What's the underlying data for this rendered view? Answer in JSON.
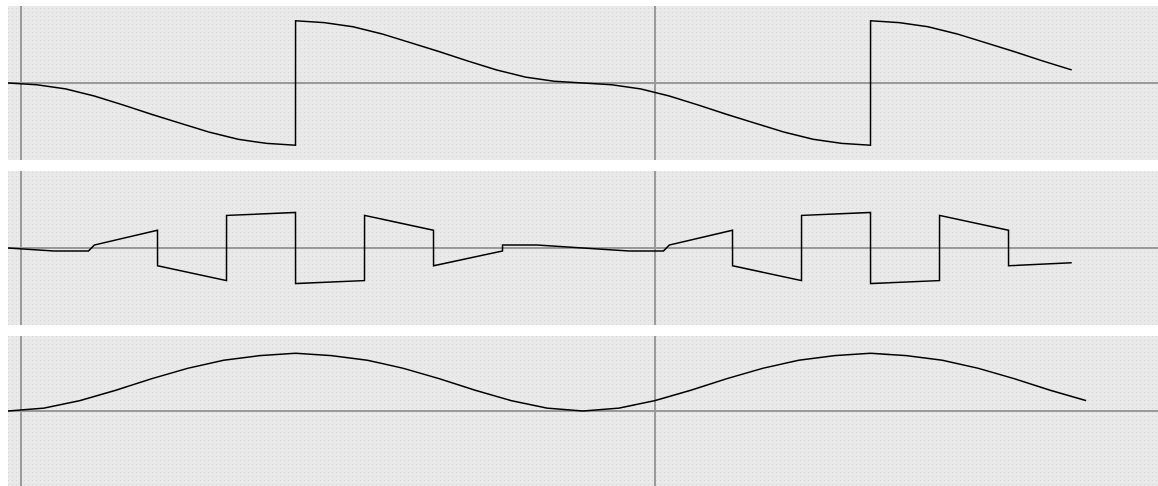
{
  "theme": {
    "page_bg": "#ffffff",
    "panel_bg": "#e9e9e9",
    "grid_dot": "#d7d7d7",
    "axis": "#9a9a9a",
    "trace": "#000000"
  },
  "chart_data": [
    {
      "type": "line",
      "grid": true,
      "xlim": [
        0,
        2
      ],
      "ylim": [
        -1.3,
        1.3
      ],
      "x": [
        0.0,
        0.05,
        0.1,
        0.15,
        0.2,
        0.25,
        0.3,
        0.35,
        0.4,
        0.45,
        0.5,
        0.5001,
        0.55,
        0.6,
        0.65,
        0.7,
        0.75,
        0.8,
        0.85,
        0.9,
        0.95,
        1.0,
        1.05,
        1.1,
        1.15,
        1.2,
        1.25,
        1.3,
        1.35,
        1.4,
        1.45,
        1.5,
        1.5001,
        1.55,
        1.6,
        1.65,
        1.7,
        1.75,
        1.8,
        1.85
      ],
      "series": [
        {
          "values": [
            0.0,
            -0.03,
            -0.1,
            -0.22,
            -0.37,
            -0.53,
            -0.68,
            -0.83,
            -0.95,
            -1.02,
            -1.05,
            1.05,
            1.02,
            0.95,
            0.83,
            0.68,
            0.53,
            0.37,
            0.22,
            0.1,
            0.03,
            0.0,
            -0.03,
            -0.1,
            -0.22,
            -0.37,
            -0.53,
            -0.68,
            -0.83,
            -0.95,
            -1.02,
            -1.05,
            1.05,
            1.02,
            0.95,
            0.83,
            0.68,
            0.53,
            0.37,
            0.22
          ]
        }
      ]
    },
    {
      "type": "line",
      "grid": true,
      "xlim": [
        0,
        2
      ],
      "ylim": [
        -1.3,
        1.3
      ],
      "x": [
        0.0,
        0.08,
        0.14,
        0.1501,
        0.26,
        0.2601,
        0.38,
        0.3801,
        0.5,
        0.5001,
        0.62,
        0.6201,
        0.74,
        0.7401,
        0.86,
        0.8601,
        0.92,
        1.0,
        1.08,
        1.14,
        1.1501,
        1.26,
        1.2601,
        1.38,
        1.3801,
        1.5,
        1.5001,
        1.62,
        1.6201,
        1.74,
        1.7401,
        1.85
      ],
      "series": [
        {
          "values": [
            0.0,
            -0.05,
            -0.05,
            0.05,
            0.3,
            -0.3,
            -0.55,
            0.55,
            0.6,
            -0.6,
            -0.55,
            0.55,
            0.3,
            -0.3,
            -0.05,
            0.05,
            0.05,
            0.0,
            -0.05,
            -0.05,
            0.05,
            0.3,
            -0.3,
            -0.55,
            0.55,
            0.6,
            -0.6,
            -0.55,
            0.55,
            0.3,
            -0.3,
            -0.25
          ]
        }
      ]
    },
    {
      "type": "line",
      "grid": true,
      "xlim": [
        0,
        2
      ],
      "ylim": [
        -1.3,
        1.3
      ],
      "x": [
        0.0,
        0.0625,
        0.125,
        0.1875,
        0.25,
        0.3125,
        0.375,
        0.4375,
        0.5,
        0.5625,
        0.625,
        0.6875,
        0.75,
        0.8125,
        0.875,
        0.9375,
        1.0,
        1.0625,
        1.125,
        1.1875,
        1.25,
        1.3125,
        1.375,
        1.4375,
        1.5,
        1.5625,
        1.625,
        1.6875,
        1.75,
        1.8125,
        1.875
      ],
      "series": [
        {
          "values": [
            0.0,
            0.05,
            0.18,
            0.36,
            0.56,
            0.74,
            0.88,
            0.96,
            1.0,
            0.96,
            0.88,
            0.74,
            0.56,
            0.36,
            0.18,
            0.05,
            0.0,
            0.05,
            0.18,
            0.36,
            0.56,
            0.74,
            0.88,
            0.96,
            1.0,
            0.96,
            0.88,
            0.74,
            0.56,
            0.36,
            0.18
          ]
        }
      ]
    }
  ]
}
